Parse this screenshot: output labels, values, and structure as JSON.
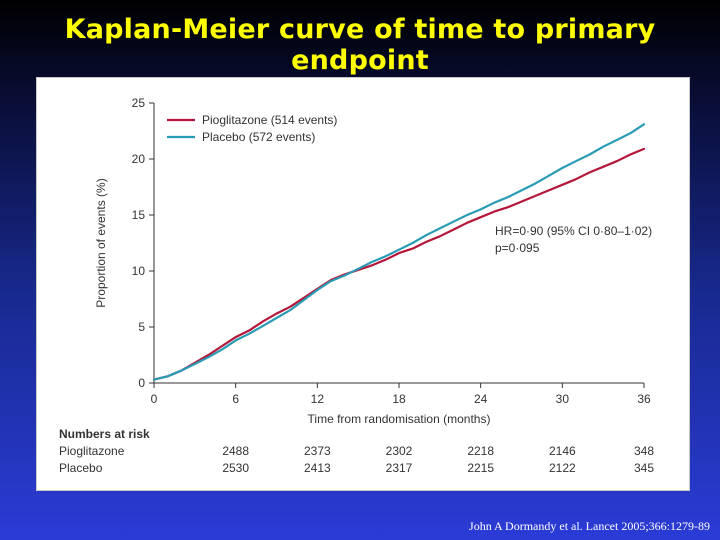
{
  "slide": {
    "title": "Kaplan-Meier curve of time to primary endpoint",
    "citation": "John A Dormandy et al. Lancet 2005;366:1279-89"
  },
  "chart_data": {
    "type": "line",
    "xlabel": "Time from randomisation (months)",
    "ylabel": "Proportion of events (%)",
    "xlim": [
      0,
      36
    ],
    "ylim": [
      0,
      25
    ],
    "xticks": [
      0,
      6,
      12,
      18,
      24,
      30,
      36
    ],
    "yticks": [
      0,
      5,
      10,
      15,
      20,
      25
    ],
    "grid": false,
    "legend_position": "top-left",
    "series": [
      {
        "name": "Pioglitazone (514 events)",
        "color": "#b5173a",
        "x": [
          0,
          1,
          2,
          3,
          4,
          5,
          6,
          7,
          8,
          9,
          10,
          11,
          12,
          13,
          14,
          15,
          16,
          17,
          18,
          19,
          20,
          21,
          22,
          23,
          24,
          25,
          26,
          27,
          28,
          29,
          30,
          31,
          32,
          33,
          34,
          35,
          36
        ],
        "y": [
          0.3,
          0.6,
          1.1,
          1.8,
          2.5,
          3.3,
          4.1,
          4.7,
          5.5,
          6.2,
          6.8,
          7.6,
          8.4,
          9.2,
          9.7,
          10.1,
          10.5,
          11.0,
          11.6,
          12.0,
          12.6,
          13.1,
          13.7,
          14.3,
          14.8,
          15.3,
          15.7,
          16.2,
          16.7,
          17.2,
          17.7,
          18.2,
          18.8,
          19.3,
          19.8,
          20.4,
          20.9
        ]
      },
      {
        "name": "Placebo (572 events)",
        "color": "#2a9bb5",
        "x": [
          0,
          1,
          2,
          3,
          4,
          5,
          6,
          7,
          8,
          9,
          10,
          11,
          12,
          13,
          14,
          15,
          16,
          17,
          18,
          19,
          20,
          21,
          22,
          23,
          24,
          25,
          26,
          27,
          28,
          29,
          30,
          31,
          32,
          33,
          34,
          35,
          36
        ],
        "y": [
          0.3,
          0.6,
          1.1,
          1.7,
          2.3,
          3.0,
          3.8,
          4.4,
          5.1,
          5.8,
          6.5,
          7.4,
          8.3,
          9.1,
          9.6,
          10.2,
          10.8,
          11.3,
          11.9,
          12.5,
          13.2,
          13.8,
          14.4,
          15.0,
          15.5,
          16.1,
          16.6,
          17.2,
          17.8,
          18.5,
          19.2,
          19.8,
          20.4,
          21.1,
          21.7,
          22.3,
          23.1
        ]
      }
    ],
    "annotation": {
      "line1": "HR=0·90 (95% CI 0·80–1·02)",
      "line2": "p=0·095"
    },
    "numbers_at_risk": {
      "header": "Numbers at risk",
      "x": [
        6,
        12,
        18,
        24,
        30,
        36
      ],
      "rows": [
        {
          "label": "Pioglitazone",
          "values": [
            "2488",
            "2373",
            "2302",
            "2218",
            "2146",
            "348"
          ]
        },
        {
          "label": "Placebo",
          "values": [
            "2530",
            "2413",
            "2317",
            "2215",
            "2122",
            "345"
          ]
        }
      ]
    }
  }
}
